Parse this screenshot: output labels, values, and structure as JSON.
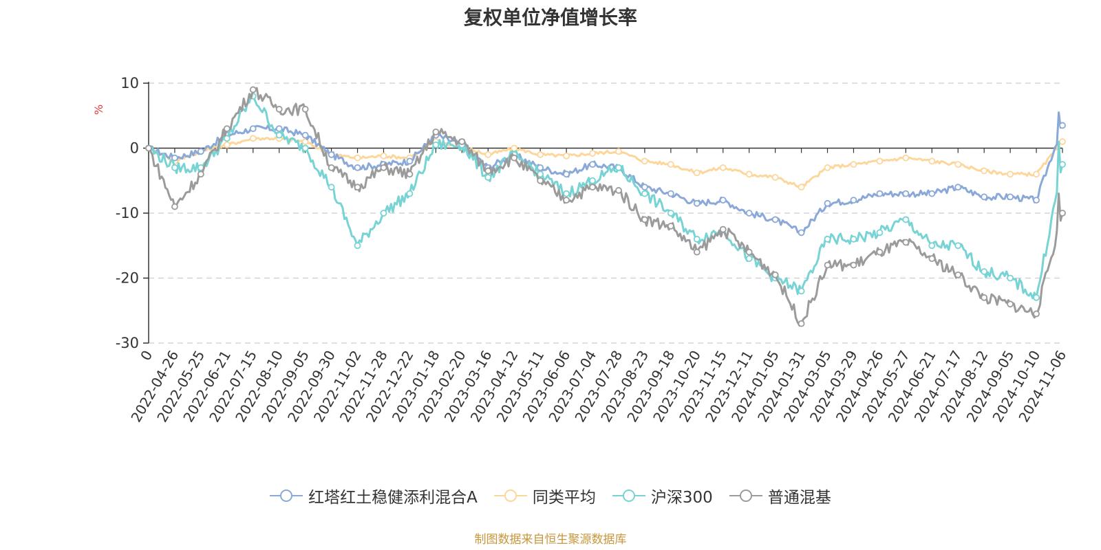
{
  "chart_data": {
    "type": "line",
    "title": "复权单位净值增长率",
    "ylabel": "%",
    "ylim": [
      -30,
      10
    ],
    "yticks": [
      10,
      0,
      -10,
      -20,
      -30
    ],
    "grid": true,
    "legend_position": "bottom",
    "x": [
      "0",
      "2022-04-26",
      "2022-05-25",
      "2022-06-21",
      "2022-07-15",
      "2022-08-10",
      "2022-09-05",
      "2022-09-30",
      "2022-11-02",
      "2022-11-28",
      "2022-12-22",
      "2023-01-18",
      "2023-02-20",
      "2023-03-16",
      "2023-04-12",
      "2023-05-11",
      "2023-06-06",
      "2023-07-04",
      "2023-07-28",
      "2023-08-23",
      "2023-09-18",
      "2023-10-20",
      "2023-11-15",
      "2023-12-11",
      "2024-01-05",
      "2024-01-31",
      "2024-03-05",
      "2024-03-29",
      "2024-04-26",
      "2024-05-27",
      "2024-06-21",
      "2024-07-17",
      "2024-08-12",
      "2024-09-05",
      "2024-10-10",
      "2024-11-06"
    ],
    "series": [
      {
        "name": "红塔红土稳健添利混合A",
        "color": "#8aa8d8",
        "values": [
          0,
          -1.5,
          -0.5,
          2,
          3,
          3,
          2,
          -1,
          -3,
          -2.5,
          -2,
          2,
          0.5,
          -3,
          -1,
          -3,
          -4,
          -2.5,
          -3,
          -6,
          -7,
          -8.5,
          -8,
          -10,
          -11,
          -13,
          -8.5,
          -8,
          -7,
          -7,
          -7,
          -6,
          -7.5,
          -7.5,
          -8,
          3.5
        ],
        "extra_peak": 5.5
      },
      {
        "name": "同类平均",
        "color": "#fcd69a",
        "values": [
          0,
          -2,
          -0.5,
          0.5,
          1.5,
          1.5,
          1,
          -1,
          -1.5,
          -1.2,
          -1.5,
          1,
          0.2,
          -1,
          0,
          -1,
          -1.2,
          -0.8,
          -0.5,
          -2,
          -2.5,
          -3.8,
          -3,
          -4,
          -4.5,
          -6,
          -3,
          -2.5,
          -2,
          -1.5,
          -2,
          -2.5,
          -3.5,
          -4,
          -4,
          1
        ]
      },
      {
        "name": "沪深300",
        "color": "#78d3d4",
        "values": [
          0,
          -3,
          -3,
          1.5,
          8,
          2,
          0,
          -6,
          -15,
          -10,
          -7,
          0.5,
          0.5,
          -4.5,
          -1,
          -4,
          -7,
          -5,
          -3,
          -7,
          -10,
          -14,
          -12.5,
          -17,
          -20,
          -22,
          -14,
          -14,
          -13,
          -11,
          -15,
          -15,
          -19,
          -20,
          -23,
          -2.5
        ],
        "extra_peak": 1
      },
      {
        "name": "普通混基",
        "color": "#9b9b9b",
        "values": [
          0,
          -9,
          -4,
          3,
          9,
          6,
          6,
          -3,
          -6,
          -3,
          -4,
          2.5,
          1,
          -3.5,
          -1.5,
          -5,
          -8,
          -6,
          -6.5,
          -11,
          -12,
          -16,
          -12.5,
          -16,
          -19.5,
          -27,
          -18,
          -18,
          -16,
          -14.5,
          -17,
          -19.5,
          -23,
          -24,
          -25.5,
          -10
        ],
        "extra_peak": -7
      }
    ]
  },
  "legend": {
    "items": [
      "红塔红土稳健添利混合A",
      "同类平均",
      "沪深300",
      "普通混基"
    ]
  },
  "source": "制图数据来自恒生聚源数据库"
}
